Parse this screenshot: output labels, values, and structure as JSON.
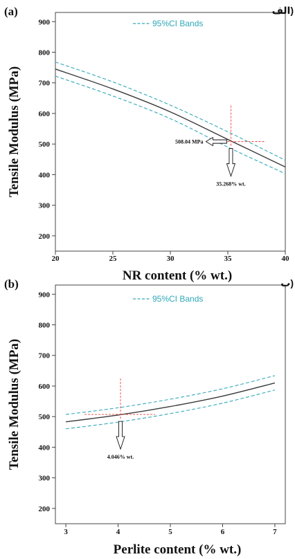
{
  "colors": {
    "fit": "#3a3a3a",
    "ci": "#2fa8b8",
    "ref": "#e8413a",
    "axis": "#444444",
    "text": "#111111"
  },
  "chart_data": [
    {
      "type": "line",
      "panel_label": "(a)",
      "panel_label_alt": "الف)",
      "xlabel": "NR content (% wt.)",
      "ylabel": "Tensile Modulus (MPa)",
      "xlim": [
        20,
        40
      ],
      "ylim": [
        150,
        930
      ],
      "xticks": [
        20,
        25,
        30,
        35,
        40
      ],
      "yticks": [
        200,
        300,
        400,
        500,
        600,
        700,
        800,
        900
      ],
      "legend": {
        "label": "95%CI Bands",
        "position": "top-center"
      },
      "series": [
        {
          "role": "fit",
          "x": [
            20,
            25,
            30,
            35,
            40
          ],
          "y": [
            745,
            680,
            605,
            515,
            425
          ]
        },
        {
          "role": "ci-upper",
          "x": [
            20,
            25,
            30,
            35,
            40
          ],
          "y": [
            768,
            703,
            627,
            540,
            447
          ]
        },
        {
          "role": "ci-lower",
          "x": [
            20,
            25,
            30,
            35,
            40
          ],
          "y": [
            722,
            657,
            583,
            490,
            403
          ]
        }
      ],
      "optimum": {
        "x": 35.268,
        "y": 508.04,
        "y_label": "508.04 MPa",
        "x_label": "35.268% wt."
      }
    },
    {
      "type": "line",
      "panel_label": "(b)",
      "panel_label_alt": "ب)",
      "xlabel": "Perlite content (% wt.)",
      "ylabel": "Tensile Modulus (MPa)",
      "xlim": [
        2.8,
        7.2
      ],
      "ylim": [
        150,
        930
      ],
      "xticks": [
        3,
        4,
        5,
        6,
        7
      ],
      "yticks": [
        200,
        300,
        400,
        500,
        600,
        700,
        800,
        900
      ],
      "legend": {
        "label": "95%CI Bands",
        "position": "top-center"
      },
      "series": [
        {
          "role": "fit",
          "x": [
            3,
            4,
            5,
            6,
            7
          ],
          "y": [
            483,
            505,
            533,
            567,
            610
          ]
        },
        {
          "role": "ci-upper",
          "x": [
            3,
            4,
            5,
            6,
            7
          ],
          "y": [
            507,
            529,
            557,
            591,
            634
          ]
        },
        {
          "role": "ci-lower",
          "x": [
            3,
            4,
            5,
            6,
            7
          ],
          "y": [
            460,
            482,
            510,
            544,
            587
          ]
        }
      ],
      "optimum": {
        "x": 4.046,
        "y": 507,
        "x_label": "4.046% wt."
      }
    }
  ]
}
